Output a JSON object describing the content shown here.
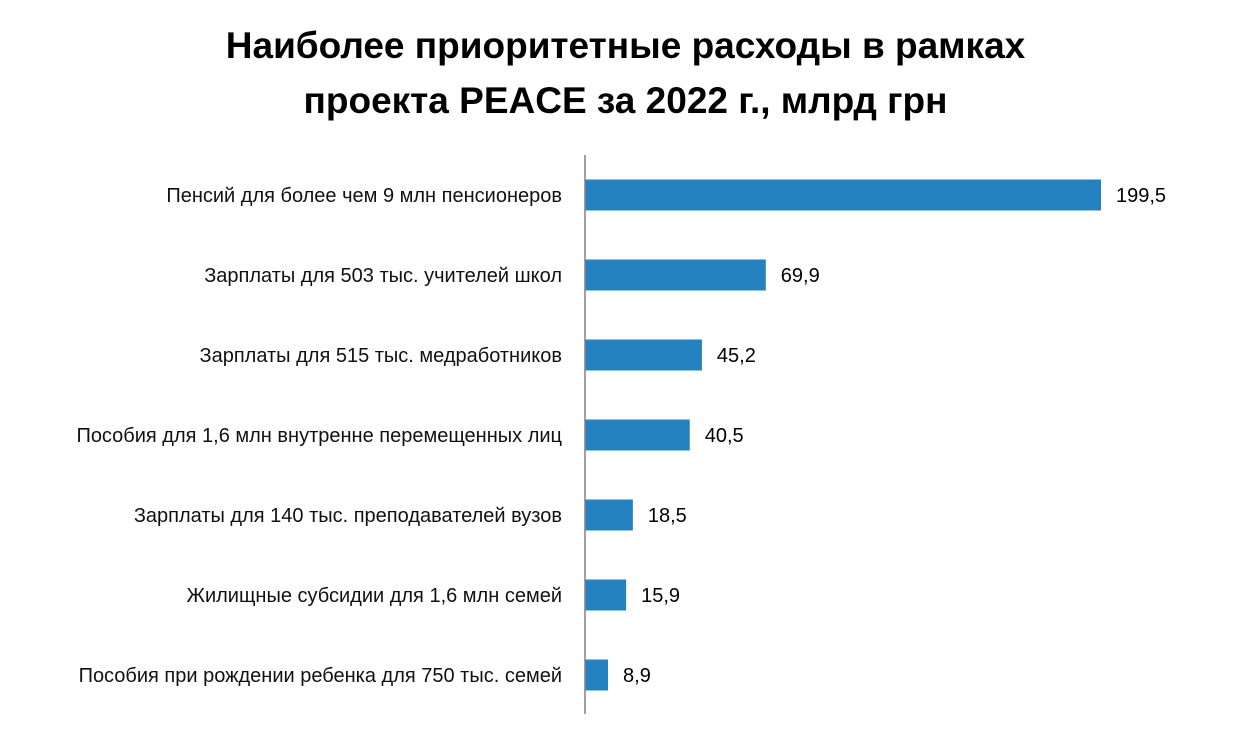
{
  "chart_data": {
    "type": "bar",
    "orientation": "horizontal",
    "title_lines": [
      "Наиболее приоритетные расходы в рамках",
      "проекта PEACE за 2022 г., млрд грн"
    ],
    "categories": [
      "Пенсий для более чем 9 млн пенсионеров",
      "Зарплаты для 503 тыс. учителей школ",
      "Зарплаты для 515 тыс. медработников",
      "Пособия для 1,6 млн внутренне перемещенных лиц",
      "Зарплаты для 140 тыс. преподавателей вузов",
      "Жилищные субсидии для 1,6 млн семей",
      "Пособия при рождении ребенка для 750 тыс. семей"
    ],
    "values": [
      199.5,
      69.9,
      45.2,
      40.5,
      18.5,
      15.9,
      8.9
    ],
    "value_labels": [
      "199,5",
      "69,9",
      "45,2",
      "40,5",
      "18,5",
      "15,9",
      "8,9"
    ],
    "bar_color": "#2481C2",
    "axis_color": "#808080",
    "grid": false,
    "legend": "none"
  }
}
